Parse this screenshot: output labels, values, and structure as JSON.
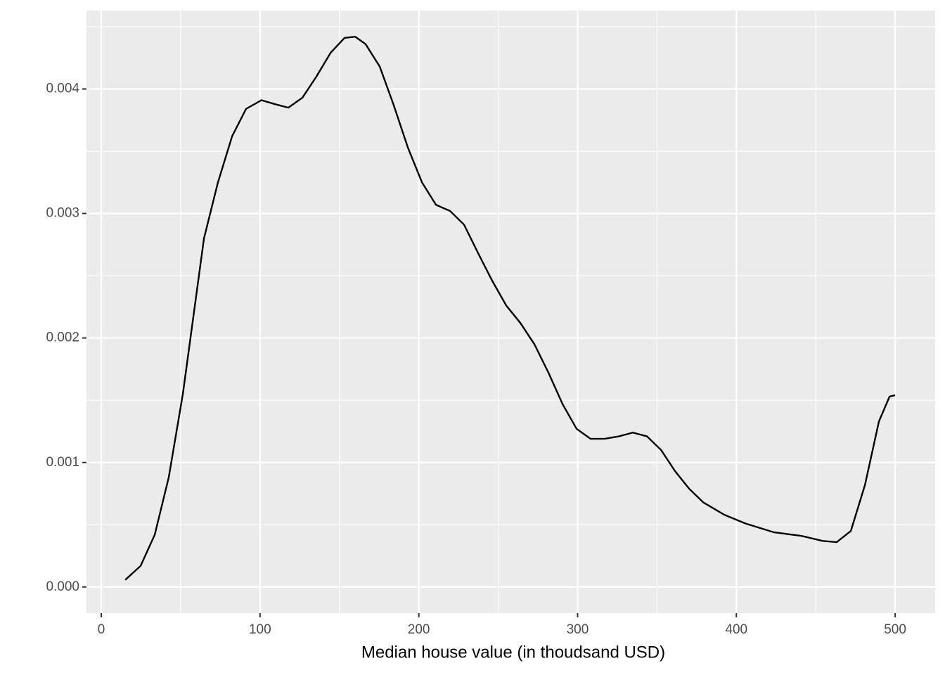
{
  "chart_data": {
    "type": "line",
    "x_label": "Median house value (in thoudsand USD)",
    "x": [
      15.1,
      24.8,
      33.7,
      42.5,
      51.4,
      64.7,
      73.5,
      82.4,
      91.2,
      100.9,
      108.9,
      117.8,
      126.7,
      135.5,
      144.4,
      153.2,
      159.9,
      166.5,
      175.4,
      184.2,
      193.1,
      202,
      210.8,
      219.7,
      228.5,
      237.4,
      246.2,
      255.1,
      264,
      272.8,
      281.7,
      290.5,
      299.4,
      308.2,
      317.1,
      326,
      334.8,
      343.7,
      352.6,
      361.4,
      370.2,
      379.1,
      392.4,
      405.7,
      423.4,
      441.1,
      454.4,
      463.2,
      472.1,
      481,
      489.8,
      496.5,
      500
    ],
    "values": [
      5.7e-05,
      0.00017,
      0.00042,
      0.00088,
      0.00155,
      0.0028,
      0.00325,
      0.00362,
      0.00384,
      0.00391,
      0.00388,
      0.00385,
      0.00393,
      0.0041,
      0.00429,
      0.00441,
      0.00442,
      0.00436,
      0.00418,
      0.00387,
      0.00353,
      0.00325,
      0.00307,
      0.00302,
      0.00291,
      0.00268,
      0.00246,
      0.00226,
      0.00212,
      0.00195,
      0.00172,
      0.00147,
      0.00127,
      0.00119,
      0.00119,
      0.00121,
      0.00124,
      0.00121,
      0.0011,
      0.00093,
      0.00079,
      0.00068,
      0.00058,
      0.00051,
      0.00044,
      0.00041,
      0.00037,
      0.00036,
      0.00045,
      0.00082,
      0.00133,
      0.00153,
      0.00154
    ],
    "color": "#000000",
    "xlim": [
      -9.3,
      525.2
    ],
    "ylim": [
      -0.00021,
      0.00463
    ],
    "xticks": [
      0,
      100,
      200,
      300,
      400,
      500
    ],
    "yticks": [
      {
        "value": 0,
        "label": "0.000"
      },
      0.001,
      0.002,
      0.003,
      0.004
    ],
    "x_minor_ticks": [
      50,
      150,
      250,
      350,
      450
    ],
    "y_minor_ticks": [
      0.0005,
      0.0015,
      0.0025,
      0.0035,
      0.0045
    ],
    "grid": true
  }
}
